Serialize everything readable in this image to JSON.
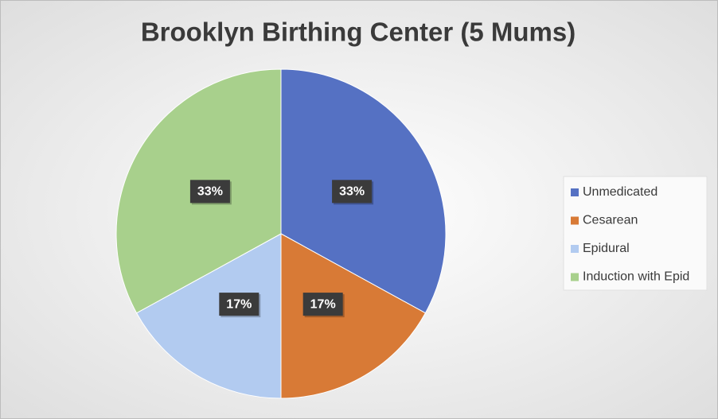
{
  "chart_data": {
    "type": "pie",
    "title": "Brooklyn Birthing Center (5 Mums)",
    "categories": [
      "Unmedicated",
      "Cesarean",
      "Epidural",
      "Induction with Epid"
    ],
    "values": [
      33,
      17,
      17,
      33
    ],
    "value_labels": [
      "33%",
      "17%",
      "17%",
      "33%"
    ],
    "colors": [
      "#5571c3",
      "#d87a36",
      "#b2cbf0",
      "#a8d08c"
    ],
    "legend": "right"
  }
}
